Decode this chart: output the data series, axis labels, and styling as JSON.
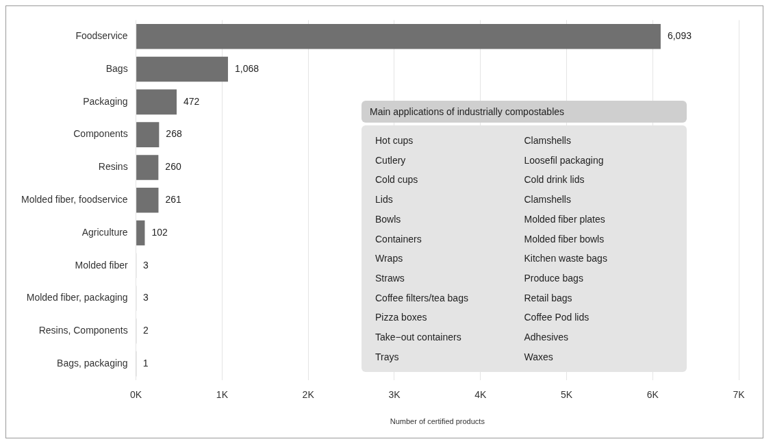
{
  "chart_data": {
    "type": "bar",
    "orientation": "horizontal",
    "xlabel": "Number of certified products",
    "categories": [
      "Foodservice",
      "Bags",
      "Packaging",
      "Components",
      "Resins",
      "Molded fiber, foodservice",
      "Agriculture",
      "Molded fiber",
      "Molded fiber, packaging",
      "Resins, Components",
      "Bags, packaging"
    ],
    "values": [
      6093,
      1068,
      472,
      268,
      260,
      261,
      102,
      3,
      3,
      2,
      1
    ],
    "color": "#707070",
    "xlim": [
      0,
      7000
    ],
    "xticks": [
      {
        "value": 0,
        "label": "0K"
      },
      {
        "value": 1000,
        "label": "1K"
      },
      {
        "value": 2000,
        "label": "2K"
      },
      {
        "value": 3000,
        "label": "3K"
      },
      {
        "value": 4000,
        "label": "4K"
      },
      {
        "value": 5000,
        "label": "5K"
      },
      {
        "value": 6000,
        "label": "6K"
      },
      {
        "value": 7000,
        "label": "7K"
      }
    ],
    "value_labels": [
      "6,093",
      "1,068",
      "472",
      "268",
      "260",
      "261",
      "102",
      "3",
      "3",
      "2",
      "1"
    ],
    "grid": "x",
    "legend": false,
    "annotations": [
      "Main applications of industrially compostables",
      "Hot cups",
      "Cutlery",
      "Cold cups",
      "Lids",
      "Bowls",
      "Containers",
      "Wraps",
      "Straws",
      "Coffee filters/tea bags",
      "Pizza boxes",
      "Take−out containers",
      "Trays",
      "Clamshells",
      "Loosefil packaging",
      "Cold drink lids",
      "Clamshells",
      "Molded fiber plates",
      "Molded fiber bowls",
      "Kitchen waste bags",
      "Produce bags",
      "Retail bags",
      "Coffee Pod lids",
      "Adhesives",
      "Waxes"
    ]
  }
}
